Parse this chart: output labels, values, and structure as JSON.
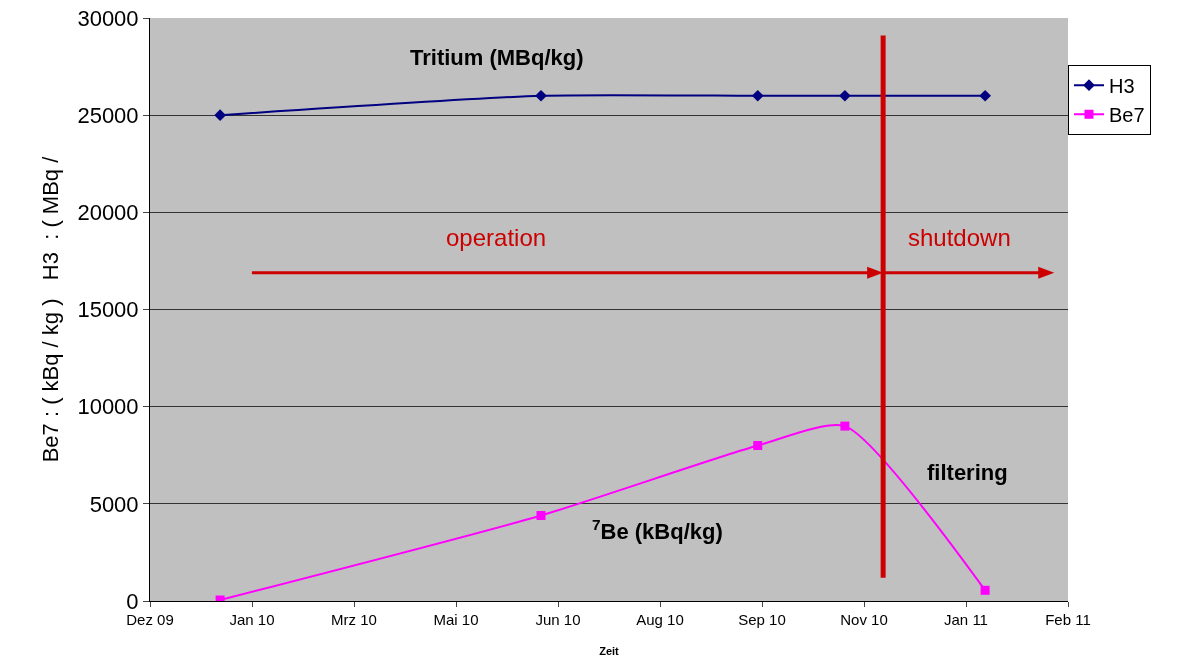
{
  "chart_data": {
    "type": "line",
    "xlabel": "Zeit",
    "ylabel": "Be7 : ( kBq / kg )   H3  : ( MBq /",
    "x": [
      "2010-01-15",
      "2010-06-15",
      "2010-09-25",
      "2010-11-05",
      "2011-01-10"
    ],
    "series": [
      {
        "name": "H3",
        "color": "#000080",
        "marker": "diamond",
        "values": [
          25000,
          26000,
          26000,
          26000,
          26000
        ]
      },
      {
        "name": "Be7",
        "color": "#ff00ff",
        "marker": "square",
        "values": [
          50,
          4400,
          8000,
          9000,
          550
        ]
      }
    ],
    "xlim": [
      "2009-12-13",
      "2011-02-18"
    ],
    "xticks": [
      {
        "value": "2009-12-13",
        "label": "Dez 09"
      },
      {
        "value": "2010-01-30",
        "label": "Jan 10"
      },
      {
        "value": "2010-03-19",
        "label": "Mrz 10"
      },
      {
        "value": "2010-05-06",
        "label": "Mai 10"
      },
      {
        "value": "2010-06-23",
        "label": "Jun 10"
      },
      {
        "value": "2010-08-10",
        "label": "Aug 10"
      },
      {
        "value": "2010-09-27",
        "label": "Sep 10"
      },
      {
        "value": "2010-11-14",
        "label": "Nov 10"
      },
      {
        "value": "2011-01-01",
        "label": "Jan 11"
      },
      {
        "value": "2011-02-18",
        "label": "Feb 11"
      }
    ],
    "ylim": [
      0,
      30000
    ],
    "yticks": [
      0,
      5000,
      10000,
      15000,
      20000,
      25000,
      30000
    ],
    "grid": "y",
    "legend": "right",
    "line_style": "solid",
    "ref_lines": [
      {
        "axis": "x",
        "value": "2010-11-23",
        "color": "#cc0000"
      }
    ],
    "annotations": [
      "Tritium (MBq/kg)",
      "$^{7}$Be (kBq/kg)",
      "filtering",
      "operation",
      "shutdown"
    ]
  }
}
